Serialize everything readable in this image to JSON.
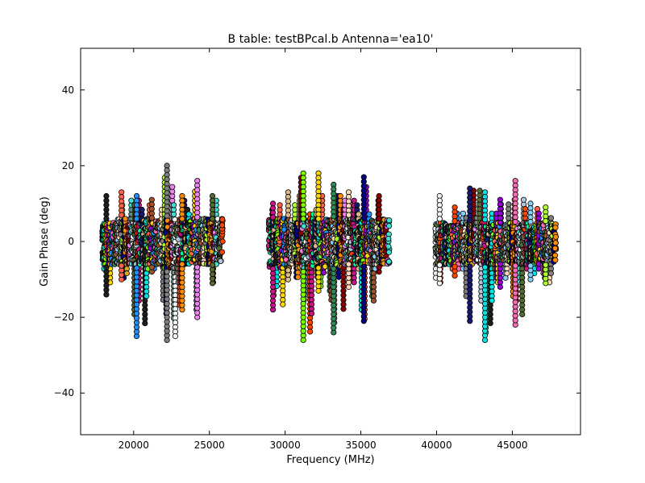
{
  "chart_data": {
    "type": "scatter",
    "title": "B table: testBPcal.b      Antenna='ea10'",
    "xlabel": "Frequency (MHz)",
    "ylabel": "Gain Phase (deg)",
    "xlim": [
      16500,
      49500
    ],
    "ylim": [
      -51,
      51
    ],
    "xticks": [
      20000,
      25000,
      30000,
      35000,
      40000,
      45000
    ],
    "yticks": [
      -40,
      -20,
      0,
      20,
      40
    ],
    "grid": false,
    "legend": "none",
    "marker": "circle",
    "spectral_windows": [
      {
        "start": 17900,
        "end": 18900,
        "dense_min": -6,
        "dense_max": 5,
        "max": 12,
        "min": -14
      },
      {
        "start": 18900,
        "end": 19900,
        "dense_min": -6,
        "dense_max": 6,
        "max": 13,
        "min": -10
      },
      {
        "start": 19900,
        "end": 20900,
        "dense_min": -6,
        "dense_max": 6,
        "max": 12,
        "min": -25
      },
      {
        "start": 20900,
        "end": 21900,
        "dense_min": -6,
        "dense_max": 6,
        "max": 11,
        "min": -8
      },
      {
        "start": 21900,
        "end": 22900,
        "dense_min": -7,
        "dense_max": 6,
        "max": 20,
        "min": -26
      },
      {
        "start": 22900,
        "end": 23900,
        "dense_min": -6,
        "dense_max": 6,
        "max": 12,
        "min": -18
      },
      {
        "start": 23900,
        "end": 24900,
        "dense_min": -6,
        "dense_max": 6,
        "max": 16,
        "min": -20
      },
      {
        "start": 24900,
        "end": 25900,
        "dense_min": -6,
        "dense_max": 6,
        "max": 12,
        "min": -11
      },
      {
        "start": 28900,
        "end": 29900,
        "dense_min": -7,
        "dense_max": 6,
        "max": 10,
        "min": -18
      },
      {
        "start": 29900,
        "end": 30900,
        "dense_min": -7,
        "dense_max": 6,
        "max": 13,
        "min": -10
      },
      {
        "start": 30900,
        "end": 31900,
        "dense_min": -7,
        "dense_max": 6,
        "max": 18,
        "min": -26
      },
      {
        "start": 31900,
        "end": 32900,
        "dense_min": -7,
        "dense_max": 6,
        "max": 18,
        "min": -13
      },
      {
        "start": 32900,
        "end": 33900,
        "dense_min": -7,
        "dense_max": 6,
        "max": 15,
        "min": -24
      },
      {
        "start": 33900,
        "end": 34900,
        "dense_min": -6,
        "dense_max": 6,
        "max": 13,
        "min": -12
      },
      {
        "start": 34900,
        "end": 35900,
        "dense_min": -6,
        "dense_max": 6,
        "max": 17,
        "min": -21
      },
      {
        "start": 35900,
        "end": 36900,
        "dense_min": -6,
        "dense_max": 6,
        "max": 12,
        "min": -8
      },
      {
        "start": 39900,
        "end": 40900,
        "dense_min": -6,
        "dense_max": 5,
        "max": 12,
        "min": -11
      },
      {
        "start": 40900,
        "end": 41900,
        "dense_min": -6,
        "dense_max": 5,
        "max": 9,
        "min": -9
      },
      {
        "start": 41900,
        "end": 42900,
        "dense_min": -6,
        "dense_max": 5,
        "max": 14,
        "min": -21
      },
      {
        "start": 42900,
        "end": 43900,
        "dense_min": -6,
        "dense_max": 5,
        "max": 13,
        "min": -26
      },
      {
        "start": 43900,
        "end": 44900,
        "dense_min": -6,
        "dense_max": 5,
        "max": 11,
        "min": -12
      },
      {
        "start": 44900,
        "end": 45900,
        "dense_min": -6,
        "dense_max": 5,
        "max": 16,
        "min": -22
      },
      {
        "start": 45900,
        "end": 46900,
        "dense_min": -6,
        "dense_max": 5,
        "max": 10,
        "min": -10
      },
      {
        "start": 46900,
        "end": 47900,
        "dense_min": -6,
        "dense_max": 5,
        "max": 9,
        "min": -11
      }
    ],
    "colors": [
      "#1f1f1f",
      "#00e5e5",
      "#7cfc00",
      "#ff6347",
      "#9400d3",
      "#ffd700",
      "#1e90ff",
      "#ff69b4",
      "#2e8b57",
      "#a0522d",
      "#87cefa",
      "#ffdab9",
      "#808080",
      "#adff2f",
      "#00008b",
      "#ff8c00",
      "#daa520",
      "#8b0000",
      "#ee82ee",
      "#40e0d0",
      "#f5f5f5",
      "#556b2f",
      "#b0c4de",
      "#ff4500",
      "#c71585",
      "#00fa9a",
      "#191970",
      "#deb887"
    ]
  }
}
